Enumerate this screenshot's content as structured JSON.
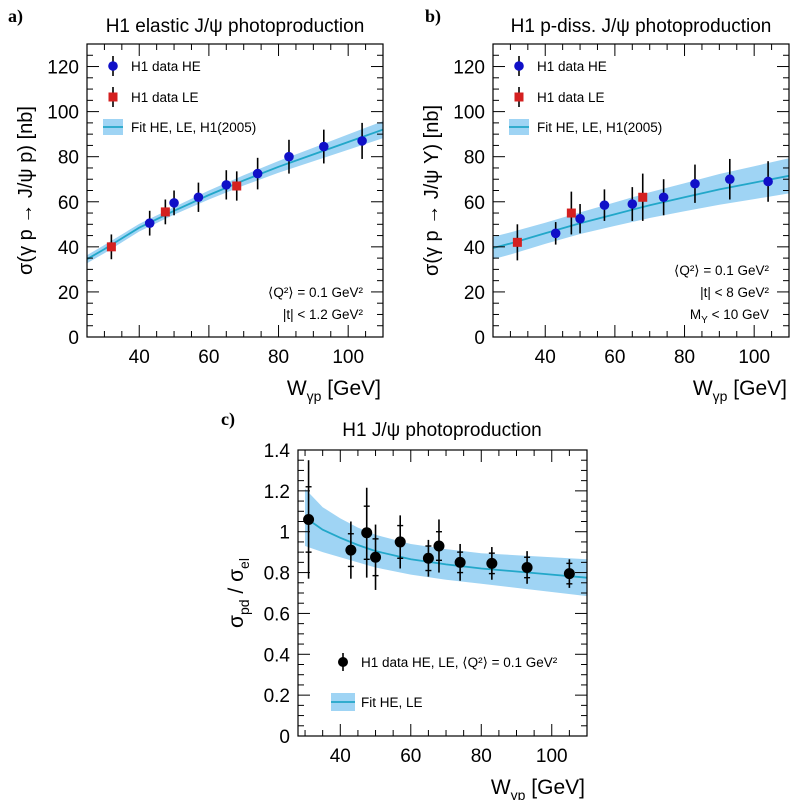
{
  "chart_data": [
    {
      "type": "scatter",
      "panel_label": "a)",
      "title": "H1 elastic J/ψ photoproduction",
      "ylabel": "σ(γ p → J/ψ p) [nb]",
      "xlabel": "Wγp [GeV]",
      "xlabel_main": "W",
      "xlabel_sub": "γp",
      "xlabel_unit": " [GeV]",
      "xlim": [
        25,
        110
      ],
      "ylim": [
        0,
        130
      ],
      "xticks": [
        "40",
        "60",
        "80",
        "100"
      ],
      "yticks": [
        "0",
        "20",
        "40",
        "60",
        "80",
        "100",
        "120"
      ],
      "legend": {
        "position": "top-left",
        "entries": [
          "H1 data HE",
          "H1 data LE",
          "Fit HE, LE, H1(2005)"
        ]
      },
      "annotations": [
        "⟨Q²⟩ = 0.1 GeV²",
        "|t| < 1.2 GeV²"
      ],
      "series": [
        {
          "name": "H1 data HE",
          "marker": "circle",
          "color": "#1010c8",
          "x": [
            43,
            50,
            57,
            65,
            74,
            83,
            93,
            104
          ],
          "y": [
            50.5,
            59.5,
            62,
            67.5,
            72.5,
            80,
            84.5,
            87
          ],
          "err": [
            5.5,
            5.5,
            6.5,
            6.5,
            7,
            7.5,
            7.5,
            8
          ]
        },
        {
          "name": "H1 data LE",
          "marker": "square",
          "color": "#d42020",
          "x": [
            32,
            47.5,
            68
          ],
          "y": [
            40,
            55.5,
            67
          ],
          "err": [
            5.5,
            5.5,
            6.5
          ]
        },
        {
          "name": "Fit HE, LE, H1(2005)",
          "type": "band",
          "color": "#22a7c9",
          "band_color": "#9fd4f4",
          "x": [
            25,
            30,
            40,
            50,
            60,
            70,
            80,
            90,
            100,
            110
          ],
          "y": [
            34.5,
            39,
            48.5,
            56,
            63,
            69.5,
            75.5,
            81,
            86.5,
            92
          ],
          "lo": [
            32.7,
            37.2,
            46.8,
            54.3,
            61,
            67.2,
            72.9,
            78,
            83.1,
            88.2
          ],
          "hi": [
            36.3,
            40.8,
            50.2,
            57.7,
            65,
            71.8,
            78.1,
            84,
            89.9,
            95.8
          ]
        }
      ]
    },
    {
      "type": "scatter",
      "panel_label": "b)",
      "title": "H1 p-diss. J/ψ photoproduction",
      "ylabel": "σ(γ p → J/ψ Y) [nb]",
      "xlabel": "Wγp [GeV]",
      "xlabel_main": "W",
      "xlabel_sub": "γp",
      "xlabel_unit": " [GeV]",
      "xlim": [
        25,
        110
      ],
      "ylim": [
        0,
        130
      ],
      "xticks": [
        "40",
        "60",
        "80",
        "100"
      ],
      "yticks": [
        "0",
        "20",
        "40",
        "60",
        "80",
        "100",
        "120"
      ],
      "legend": {
        "position": "top-left",
        "entries": [
          "H1 data HE",
          "H1 data LE",
          "Fit HE, LE, H1(2005)"
        ]
      },
      "annotations": [
        "⟨Q²⟩ = 0.1 GeV²",
        "|t| < 8 GeV²",
        "MY < 10 GeV"
      ],
      "series": [
        {
          "name": "H1 data HE",
          "marker": "circle",
          "color": "#1010c8",
          "x": [
            43,
            50,
            57,
            65,
            74,
            83,
            93,
            104
          ],
          "y": [
            46,
            52.5,
            58.5,
            59,
            62,
            68,
            70,
            69
          ],
          "err": [
            5,
            6.5,
            7,
            7.5,
            8,
            8.5,
            9,
            9
          ]
        },
        {
          "name": "H1 data LE",
          "marker": "square",
          "color": "#d42020",
          "x": [
            32,
            47.5,
            68
          ],
          "y": [
            42,
            55,
            62
          ],
          "err": [
            8,
            9.5,
            10.5
          ]
        },
        {
          "name": "Fit HE, LE, H1(2005)",
          "type": "band",
          "color": "#22a7c9",
          "band_color": "#9fd4f4",
          "x": [
            25,
            30,
            40,
            50,
            60,
            70,
            80,
            90,
            100,
            110
          ],
          "y": [
            39.5,
            41.5,
            46,
            50.5,
            54.5,
            58.5,
            62,
            65.5,
            68.5,
            71.5
          ],
          "lo": [
            34.5,
            36.6,
            41.3,
            45.7,
            49.3,
            52.8,
            55.8,
            58.7,
            61.2,
            63.7
          ],
          "hi": [
            44.5,
            46.4,
            50.7,
            55.3,
            59.7,
            64.2,
            68.2,
            72.3,
            75.8,
            79.3
          ]
        }
      ]
    },
    {
      "type": "scatter",
      "panel_label": "c)",
      "title": "H1 J/ψ photoproduction",
      "ylabel": "σpd / σel",
      "ylabel_parts": [
        "σ",
        "pd",
        " / σ",
        "el"
      ],
      "xlabel": "Wγp [GeV]",
      "xlabel_main": "W",
      "xlabel_sub": "γp",
      "xlabel_unit": " [GeV]",
      "xlim": [
        28,
        110
      ],
      "ylim": [
        0,
        1.4
      ],
      "xticks": [
        "40",
        "60",
        "80",
        "100"
      ],
      "yticks": [
        "0",
        "0.2",
        "0.4",
        "0.6",
        "0.8",
        "1",
        "1.2",
        "1.4"
      ],
      "legend": {
        "position": "bottom-left",
        "entries": [
          "H1 data HE, LE, ⟨Q²⟩ = 0.1 GeV²",
          "Fit HE, LE"
        ]
      },
      "series": [
        {
          "name": "H1 data HE, LE, ⟨Q²⟩ = 0.1 GeV²",
          "marker": "circle",
          "color": "#000000",
          "x": [
            31,
            43,
            47.5,
            50,
            57,
            65,
            68,
            74,
            83,
            93,
            105
          ],
          "y": [
            1.06,
            0.91,
            0.995,
            0.875,
            0.95,
            0.87,
            0.93,
            0.85,
            0.845,
            0.825,
            0.795
          ],
          "err": [
            0.29,
            0.14,
            0.22,
            0.16,
            0.13,
            0.09,
            0.13,
            0.09,
            0.08,
            0.08,
            0.07
          ],
          "err_inner": [
            0.16,
            0.08,
            0.13,
            0.09,
            0.08,
            0.06,
            0.07,
            0.05,
            0.05,
            0.05,
            0.05
          ]
        },
        {
          "name": "Fit HE, LE",
          "type": "band",
          "color": "#22a7c9",
          "band_color": "#9fd4f4",
          "x": [
            30,
            35,
            40,
            45,
            50,
            60,
            70,
            80,
            90,
            100,
            110
          ],
          "y": [
            1.07,
            1.01,
            0.97,
            0.935,
            0.905,
            0.865,
            0.84,
            0.82,
            0.805,
            0.79,
            0.775
          ],
          "lo": [
            0.93,
            0.9,
            0.875,
            0.85,
            0.825,
            0.79,
            0.765,
            0.745,
            0.725,
            0.705,
            0.685
          ],
          "hi": [
            1.21,
            1.12,
            1.065,
            1.02,
            0.985,
            0.94,
            0.915,
            0.895,
            0.885,
            0.875,
            0.865
          ]
        }
      ]
    }
  ]
}
